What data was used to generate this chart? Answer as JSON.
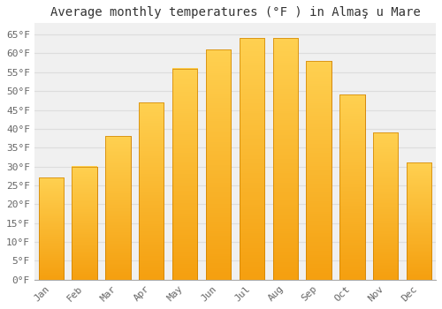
{
  "title": "Average monthly temperatures (°F ) in Almaş u Mare",
  "months": [
    "Jan",
    "Feb",
    "Mar",
    "Apr",
    "May",
    "Jun",
    "Jul",
    "Aug",
    "Sep",
    "Oct",
    "Nov",
    "Dec"
  ],
  "values": [
    27,
    30,
    38,
    47,
    56,
    61,
    64,
    64,
    58,
    49,
    39,
    31
  ],
  "bar_color_bottom": "#F5A623",
  "bar_color_top": "#FFD060",
  "background_color": "#FFFFFF",
  "plot_bg_color": "#F0F0F0",
  "grid_color": "#DDDDDD",
  "ylim": [
    0,
    68
  ],
  "yticks": [
    0,
    5,
    10,
    15,
    20,
    25,
    30,
    35,
    40,
    45,
    50,
    55,
    60,
    65
  ],
  "title_fontsize": 10,
  "tick_fontsize": 8,
  "font_family": "monospace",
  "tick_color": "#666666"
}
